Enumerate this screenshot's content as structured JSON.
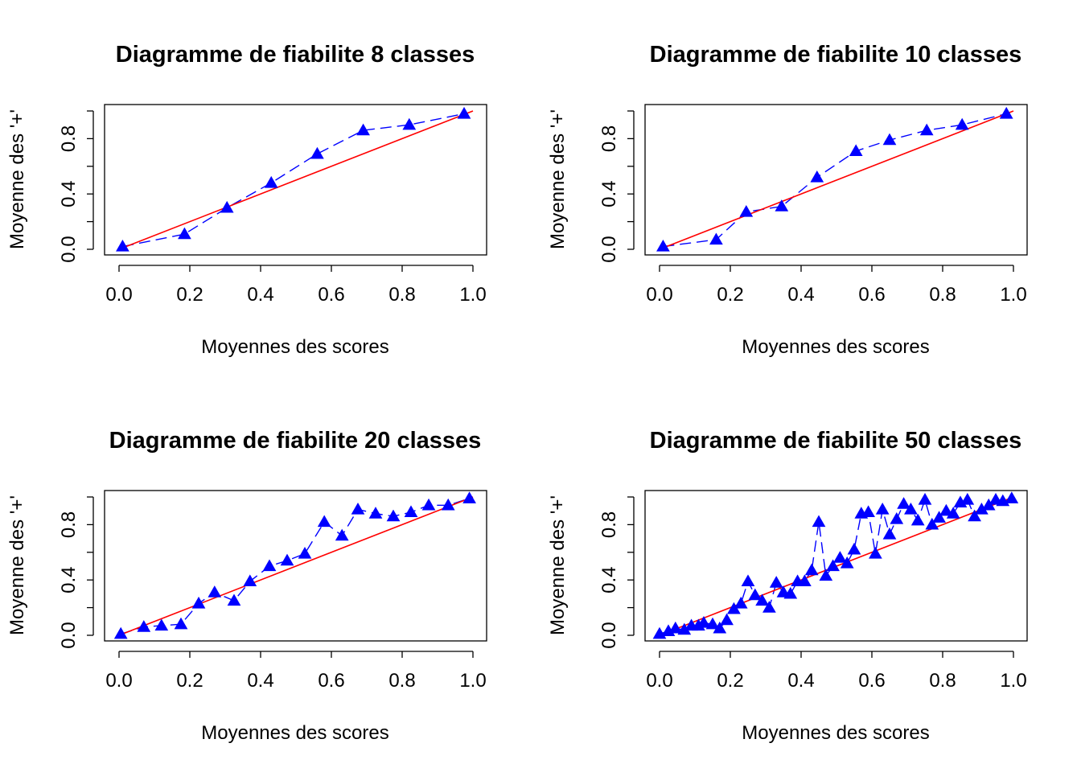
{
  "chart_data": [
    {
      "type": "scatter",
      "title": "Diagramme de fiabilite 8 classes",
      "xlabel": "Moyennes des scores",
      "ylabel": "Moyenne des '+'",
      "xlim": [
        0,
        1
      ],
      "ylim": [
        0,
        1
      ],
      "x_ticks": [
        "0.0",
        "0.2",
        "0.4",
        "0.6",
        "0.8",
        "1.0"
      ],
      "y_ticks": [
        "0.0",
        "0.4",
        "0.8"
      ],
      "series": [
        {
          "x": [
            0.01,
            0.185,
            0.305,
            0.43,
            0.56,
            0.69,
            0.82,
            0.975
          ],
          "y": [
            0.02,
            0.11,
            0.3,
            0.48,
            0.69,
            0.86,
            0.9,
            0.98
          ],
          "color": "#0000ff",
          "marker": "triangle",
          "line": "dashed"
        }
      ],
      "reference_line": {
        "x": [
          0,
          1
        ],
        "y": [
          0,
          1
        ],
        "color": "#ff0000"
      }
    },
    {
      "type": "scatter",
      "title": "Diagramme de fiabilite 10 classes",
      "xlabel": "Moyennes des scores",
      "ylabel": "Moyenne des '+'",
      "xlim": [
        0,
        1
      ],
      "ylim": [
        0,
        1
      ],
      "x_ticks": [
        "0.0",
        "0.2",
        "0.4",
        "0.6",
        "0.8",
        "1.0"
      ],
      "y_ticks": [
        "0.0",
        "0.4",
        "0.8"
      ],
      "series": [
        {
          "x": [
            0.01,
            0.16,
            0.245,
            0.345,
            0.445,
            0.555,
            0.65,
            0.755,
            0.855,
            0.98
          ],
          "y": [
            0.02,
            0.07,
            0.27,
            0.31,
            0.52,
            0.71,
            0.79,
            0.86,
            0.9,
            0.98
          ],
          "color": "#0000ff",
          "marker": "triangle",
          "line": "dashed"
        }
      ],
      "reference_line": {
        "x": [
          0,
          1
        ],
        "y": [
          0,
          1
        ],
        "color": "#ff0000"
      }
    },
    {
      "type": "scatter",
      "title": "Diagramme de fiabilite 20 classes",
      "xlabel": "Moyennes des scores",
      "ylabel": "Moyenne des '+'",
      "xlim": [
        0,
        1
      ],
      "ylim": [
        0,
        1
      ],
      "x_ticks": [
        "0.0",
        "0.2",
        "0.4",
        "0.6",
        "0.8",
        "1.0"
      ],
      "y_ticks": [
        "0.0",
        "0.4",
        "0.8"
      ],
      "series": [
        {
          "x": [
            0.005,
            0.07,
            0.12,
            0.175,
            0.225,
            0.27,
            0.325,
            0.37,
            0.425,
            0.475,
            0.525,
            0.58,
            0.63,
            0.675,
            0.725,
            0.775,
            0.825,
            0.875,
            0.93,
            0.99
          ],
          "y": [
            0.01,
            0.06,
            0.07,
            0.08,
            0.23,
            0.31,
            0.25,
            0.39,
            0.5,
            0.54,
            0.59,
            0.82,
            0.72,
            0.91,
            0.88,
            0.86,
            0.89,
            0.94,
            0.94,
            0.99
          ],
          "color": "#0000ff",
          "marker": "triangle",
          "line": "dashed"
        }
      ],
      "reference_line": {
        "x": [
          0,
          1
        ],
        "y": [
          0,
          1
        ],
        "color": "#ff0000"
      }
    },
    {
      "type": "scatter",
      "title": "Diagramme de fiabilite 50 classes",
      "xlabel": "Moyennes des scores",
      "ylabel": "Moyenne des '+'",
      "xlim": [
        0,
        1
      ],
      "ylim": [
        0,
        1
      ],
      "x_ticks": [
        "0.0",
        "0.2",
        "0.4",
        "0.6",
        "0.8",
        "1.0"
      ],
      "y_ticks": [
        "0.0",
        "0.4",
        "0.8"
      ],
      "series": [
        {
          "x": [
            0.0,
            0.025,
            0.045,
            0.07,
            0.09,
            0.11,
            0.125,
            0.15,
            0.17,
            0.19,
            0.21,
            0.23,
            0.25,
            0.27,
            0.29,
            0.31,
            0.33,
            0.35,
            0.37,
            0.39,
            0.41,
            0.43,
            0.45,
            0.47,
            0.49,
            0.51,
            0.53,
            0.55,
            0.57,
            0.59,
            0.61,
            0.63,
            0.65,
            0.67,
            0.69,
            0.71,
            0.73,
            0.75,
            0.77,
            0.79,
            0.81,
            0.83,
            0.85,
            0.87,
            0.89,
            0.91,
            0.93,
            0.95,
            0.97,
            0.995
          ],
          "y": [
            0.01,
            0.03,
            0.05,
            0.04,
            0.07,
            0.07,
            0.09,
            0.08,
            0.05,
            0.11,
            0.19,
            0.23,
            0.39,
            0.29,
            0.25,
            0.2,
            0.38,
            0.31,
            0.3,
            0.39,
            0.39,
            0.47,
            0.82,
            0.43,
            0.5,
            0.56,
            0.52,
            0.62,
            0.88,
            0.89,
            0.59,
            0.91,
            0.73,
            0.84,
            0.95,
            0.91,
            0.83,
            0.98,
            0.8,
            0.85,
            0.9,
            0.88,
            0.96,
            0.98,
            0.86,
            0.91,
            0.94,
            0.98,
            0.97,
            0.99
          ],
          "color": "#0000ff",
          "marker": "triangle",
          "line": "dashed"
        }
      ],
      "reference_line": {
        "x": [
          0,
          1
        ],
        "y": [
          0,
          1
        ],
        "color": "#ff0000"
      }
    }
  ]
}
